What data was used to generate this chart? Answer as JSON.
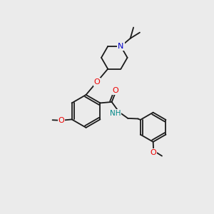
{
  "bg_color": "#ebebeb",
  "bond_color": "#1a1a1a",
  "atom_colors": {
    "O": "#ee0000",
    "N": "#0000cc",
    "NH": "#008888",
    "C": "#1a1a1a"
  }
}
